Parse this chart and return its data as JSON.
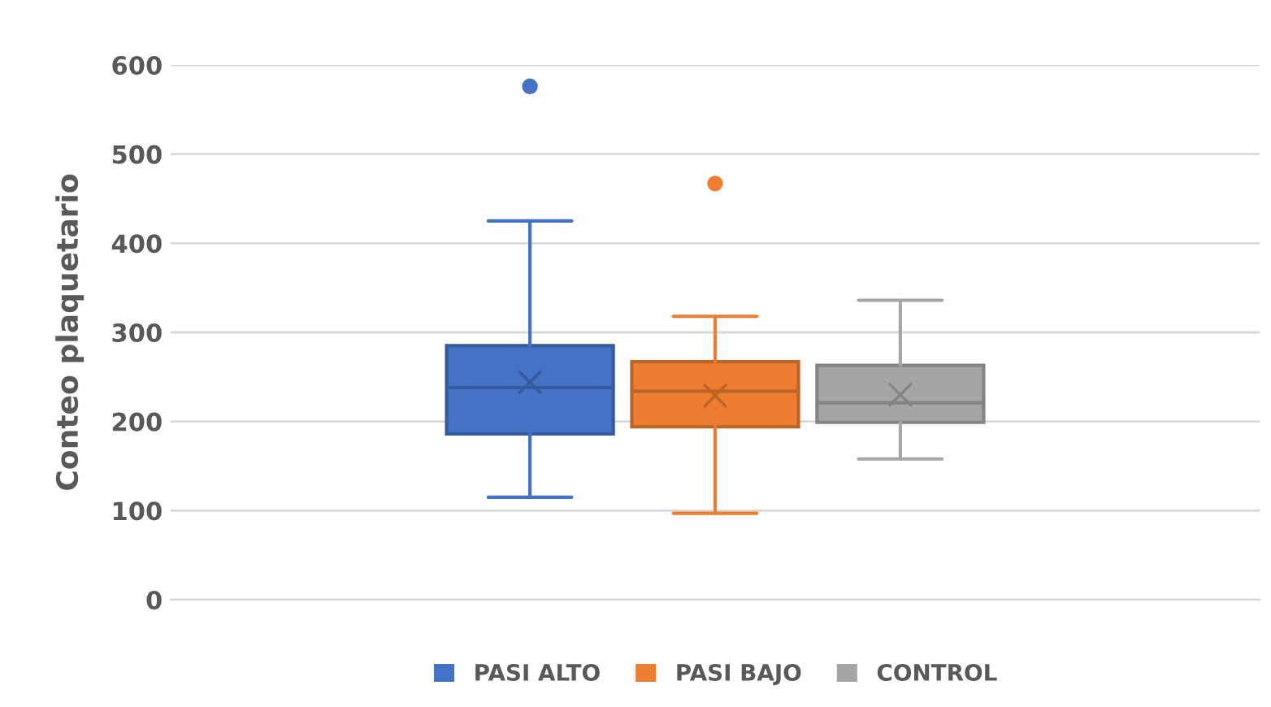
{
  "chart_data": {
    "type": "box",
    "ylabel": "Conteo plaquetario",
    "categories": [
      null
    ],
    "ylim": [
      0,
      600
    ],
    "yticks": [
      0,
      100,
      200,
      300,
      400,
      500,
      600
    ],
    "grid": "y",
    "legend": "bottom",
    "series": [
      {
        "name": "PASI ALTO",
        "color": "#4472c4",
        "boxes": [
          {
            "low": 115,
            "q1": 186,
            "median": 238,
            "q3": 285,
            "high": 425,
            "mean": 244,
            "outliers": [
              576
            ]
          }
        ]
      },
      {
        "name": "PASI BAJO",
        "color": "#ed7d31",
        "boxes": [
          {
            "low": 97,
            "q1": 194,
            "median": 234,
            "q3": 267,
            "high": 318,
            "mean": 229,
            "outliers": [
              467
            ]
          }
        ]
      },
      {
        "name": "CONTROL",
        "color": "#a5a5a5",
        "boxes": [
          {
            "low": 158,
            "q1": 199,
            "median": 221,
            "q3": 263,
            "high": 336,
            "mean": 230
          }
        ]
      }
    ]
  }
}
